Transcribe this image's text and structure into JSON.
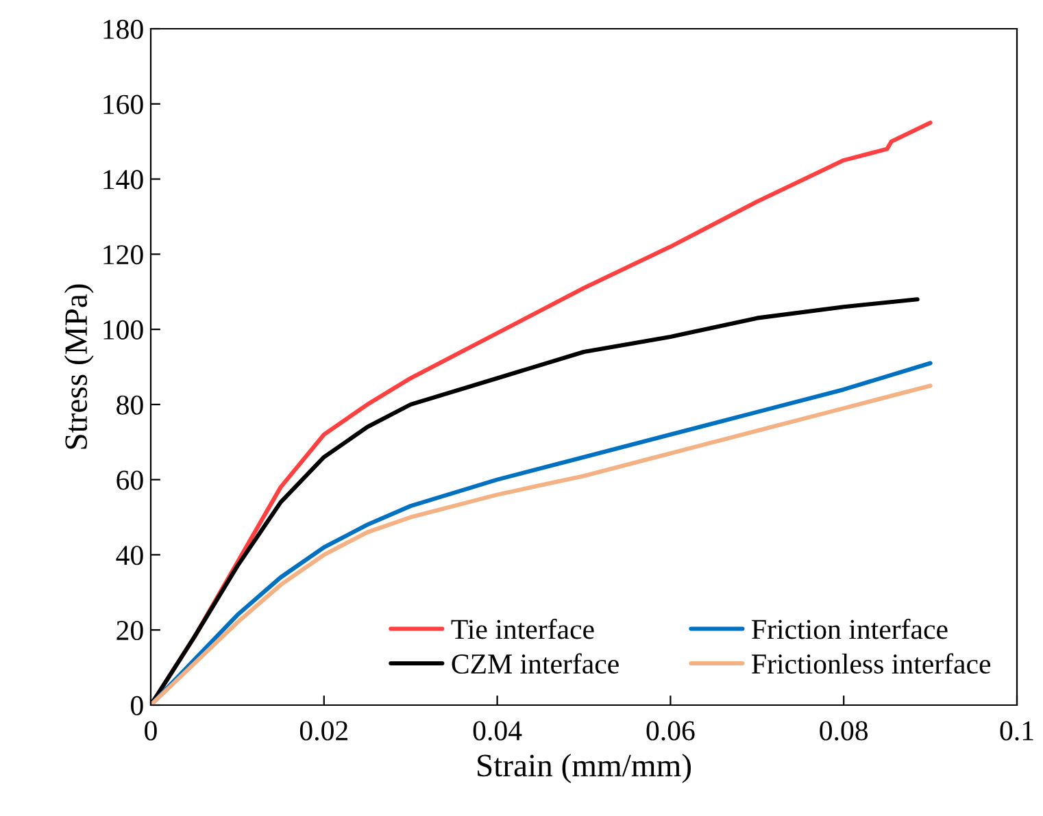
{
  "chart_data": {
    "type": "line",
    "xlabel": "Strain (mm/mm)",
    "ylabel": "Stress (MPa)",
    "xlim": [
      0,
      0.1
    ],
    "xticks": [
      0,
      0.02,
      0.04,
      0.06,
      0.08,
      0.1
    ],
    "ylim": [
      0,
      180
    ],
    "yticks": [
      0,
      20,
      40,
      60,
      80,
      100,
      120,
      140,
      160,
      180
    ],
    "grid": false,
    "legend": "bottom right",
    "marker": "none",
    "line_style": "solid",
    "series": [
      {
        "name": "Tie interface",
        "color": "#ff4040",
        "x": [
          0,
          0.005,
          0.01,
          0.015,
          0.02,
          0.025,
          0.03,
          0.04,
          0.05,
          0.06,
          0.07,
          0.08,
          0.085,
          0.0855,
          0.09
        ],
        "values": [
          0,
          18,
          38,
          58,
          72,
          80,
          87,
          99,
          111,
          122,
          134,
          145,
          148,
          150,
          155
        ]
      },
      {
        "name": "CZM interface",
        "color": "#000000",
        "x": [
          0,
          0.005,
          0.01,
          0.015,
          0.02,
          0.025,
          0.03,
          0.04,
          0.05,
          0.06,
          0.07,
          0.08,
          0.0885
        ],
        "values": [
          0,
          18,
          37,
          54,
          66,
          74,
          80,
          87,
          94,
          98,
          103,
          106,
          108
        ]
      },
      {
        "name": "Friction interface",
        "color": "#0070c0",
        "x": [
          0,
          0.005,
          0.01,
          0.015,
          0.02,
          0.025,
          0.03,
          0.04,
          0.05,
          0.06,
          0.07,
          0.08,
          0.09
        ],
        "values": [
          0,
          12,
          24,
          34,
          42,
          48,
          53,
          60,
          66,
          72,
          78,
          84,
          91
        ]
      },
      {
        "name": "Frictionless interface",
        "color": "#f4b183",
        "x": [
          0,
          0.005,
          0.01,
          0.015,
          0.02,
          0.025,
          0.03,
          0.04,
          0.05,
          0.06,
          0.07,
          0.08,
          0.09
        ],
        "values": [
          0,
          11,
          22,
          32,
          40,
          46,
          50,
          56,
          61,
          67,
          73,
          79,
          85
        ]
      }
    ]
  }
}
